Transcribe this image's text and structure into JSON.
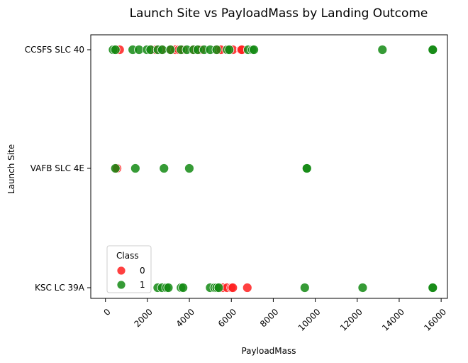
{
  "chart_data": {
    "type": "scatter",
    "title": "Launch Site vs PayloadMass by Landing Outcome",
    "xlabel": "PayloadMass",
    "ylabel": "Launch Site",
    "xlim": [
      -700,
      16300
    ],
    "xticks": [
      "0",
      "2000",
      "4000",
      "6000",
      "8000",
      "10000",
      "12000",
      "14000",
      "16000"
    ],
    "xtick_values": [
      0,
      2000,
      4000,
      6000,
      8000,
      10000,
      12000,
      14000,
      16000
    ],
    "categories": [
      "CCSFS SLC 40",
      "VAFB SLC 4E",
      "KSC LC 39A"
    ],
    "legend": {
      "title": "Class",
      "placement": "lower-left",
      "entries": [
        "0",
        "1"
      ]
    },
    "colors": {
      "0": "#ff1f1f",
      "1": "#138a13"
    },
    "series": [
      {
        "name": "0",
        "points": [
          {
            "site": "CCSFS SLC 40",
            "x": 525
          },
          {
            "site": "CCSFS SLC 40",
            "x": 677
          },
          {
            "site": "CCSFS SLC 40",
            "x": 2216
          },
          {
            "site": "CCSFS SLC 40",
            "x": 2395
          },
          {
            "site": "CCSFS SLC 40",
            "x": 2647
          },
          {
            "site": "CCSFS SLC 40",
            "x": 3136
          },
          {
            "site": "CCSFS SLC 40",
            "x": 3325
          },
          {
            "site": "CCSFS SLC 40",
            "x": 3500
          },
          {
            "site": "CCSFS SLC 40",
            "x": 3696
          },
          {
            "site": "CCSFS SLC 40",
            "x": 4159
          },
          {
            "site": "CCSFS SLC 40",
            "x": 4428
          },
          {
            "site": "CCSFS SLC 40",
            "x": 4535
          },
          {
            "site": "CCSFS SLC 40",
            "x": 5271
          },
          {
            "site": "CCSFS SLC 40",
            "x": 5383
          },
          {
            "site": "CCSFS SLC 40",
            "x": 5500
          },
          {
            "site": "CCSFS SLC 40",
            "x": 5800
          },
          {
            "site": "CCSFS SLC 40",
            "x": 6070
          },
          {
            "site": "CCSFS SLC 40",
            "x": 6460
          },
          {
            "site": "CCSFS SLC 40",
            "x": 6500
          },
          {
            "site": "VAFB SLC 4E",
            "x": 500
          },
          {
            "site": "VAFB SLC 4E",
            "x": 553
          },
          {
            "site": "KSC LC 39A",
            "x": 5300
          },
          {
            "site": "KSC LC 39A",
            "x": 5600
          },
          {
            "site": "KSC LC 39A",
            "x": 5800
          },
          {
            "site": "KSC LC 39A",
            "x": 6000
          },
          {
            "site": "KSC LC 39A",
            "x": 6070
          },
          {
            "site": "KSC LC 39A",
            "x": 6761
          }
        ]
      },
      {
        "name": "1",
        "points": [
          {
            "site": "CCSFS SLC 40",
            "x": 362
          },
          {
            "site": "CCSFS SLC 40",
            "x": 475
          },
          {
            "site": "CCSFS SLC 40",
            "x": 1300
          },
          {
            "site": "CCSFS SLC 40",
            "x": 1600
          },
          {
            "site": "CCSFS SLC 40",
            "x": 1977
          },
          {
            "site": "CCSFS SLC 40",
            "x": 2150
          },
          {
            "site": "CCSFS SLC 40",
            "x": 2500
          },
          {
            "site": "CCSFS SLC 40",
            "x": 2708
          },
          {
            "site": "CCSFS SLC 40",
            "x": 3100
          },
          {
            "site": "CCSFS SLC 40",
            "x": 3600
          },
          {
            "site": "CCSFS SLC 40",
            "x": 3880
          },
          {
            "site": "CCSFS SLC 40",
            "x": 4200
          },
          {
            "site": "CCSFS SLC 40",
            "x": 4400
          },
          {
            "site": "CCSFS SLC 40",
            "x": 4700
          },
          {
            "site": "CCSFS SLC 40",
            "x": 4990
          },
          {
            "site": "CCSFS SLC 40",
            "x": 5300
          },
          {
            "site": "CCSFS SLC 40",
            "x": 5800
          },
          {
            "site": "CCSFS SLC 40",
            "x": 5900
          },
          {
            "site": "CCSFS SLC 40",
            "x": 6800
          },
          {
            "site": "CCSFS SLC 40",
            "x": 7000
          },
          {
            "site": "CCSFS SLC 40",
            "x": 7076
          },
          {
            "site": "CCSFS SLC 40",
            "x": 13200
          },
          {
            "site": "CCSFS SLC 40",
            "x": 15600
          },
          {
            "site": "CCSFS SLC 40",
            "x": 15600
          },
          {
            "site": "VAFB SLC 4E",
            "x": 475
          },
          {
            "site": "VAFB SLC 4E",
            "x": 1425
          },
          {
            "site": "VAFB SLC 4E",
            "x": 2790
          },
          {
            "site": "VAFB SLC 4E",
            "x": 3996
          },
          {
            "site": "VAFB SLC 4E",
            "x": 9600
          },
          {
            "site": "VAFB SLC 4E",
            "x": 9600
          },
          {
            "site": "KSC LC 39A",
            "x": 2490
          },
          {
            "site": "KSC LC 39A",
            "x": 2700
          },
          {
            "site": "KSC LC 39A",
            "x": 2900
          },
          {
            "site": "KSC LC 39A",
            "x": 3000
          },
          {
            "site": "KSC LC 39A",
            "x": 3600
          },
          {
            "site": "KSC LC 39A",
            "x": 3700
          },
          {
            "site": "KSC LC 39A",
            "x": 4990
          },
          {
            "site": "KSC LC 39A",
            "x": 5200
          },
          {
            "site": "KSC LC 39A",
            "x": 5300
          },
          {
            "site": "KSC LC 39A",
            "x": 5400
          },
          {
            "site": "KSC LC 39A",
            "x": 9500
          },
          {
            "site": "KSC LC 39A",
            "x": 12259
          },
          {
            "site": "KSC LC 39A",
            "x": 15600
          },
          {
            "site": "KSC LC 39A",
            "x": 15600
          }
        ]
      }
    ],
    "grid": false
  }
}
